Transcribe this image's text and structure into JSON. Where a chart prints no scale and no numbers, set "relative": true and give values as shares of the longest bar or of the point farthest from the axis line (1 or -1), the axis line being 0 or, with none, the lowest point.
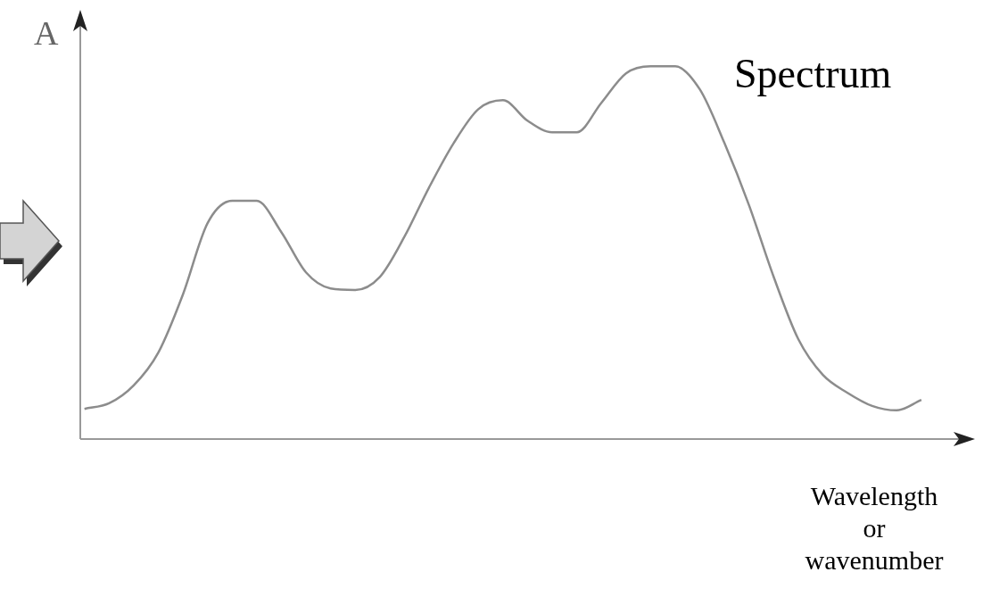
{
  "chart_data": {
    "type": "line",
    "relative": true,
    "ylabel": "A",
    "xlabel": "Wavelength\nor\nwavenumber",
    "annotations": [
      "Spectrum"
    ],
    "categories": [
      null,
      null,
      null,
      null,
      null,
      null,
      null,
      null,
      null,
      null,
      null,
      null,
      null,
      null,
      null,
      null,
      null,
      null,
      null,
      null,
      null,
      null,
      null,
      null,
      null,
      null,
      null,
      null,
      null,
      null,
      null,
      null,
      null,
      null,
      null
    ],
    "series": [
      {
        "color": "#8c8c8c",
        "values": [
          0.081,
          0.096,
          0.144,
          0.232,
          0.388,
          0.579,
          0.639,
          0.639,
          0.555,
          0.447,
          0.404,
          0.4,
          0.435,
          0.543,
          0.675,
          0.794,
          0.885,
          0.909,
          0.854,
          0.823,
          0.823,
          0.902,
          0.981,
          1,
          1,
          0.938,
          0.794,
          0.627,
          0.435,
          0.268,
          0.172,
          0.124,
          0.089,
          0.077,
          0.105
        ]
      }
    ],
    "legend": false,
    "marker": "none",
    "line_style": "solid"
  }
}
